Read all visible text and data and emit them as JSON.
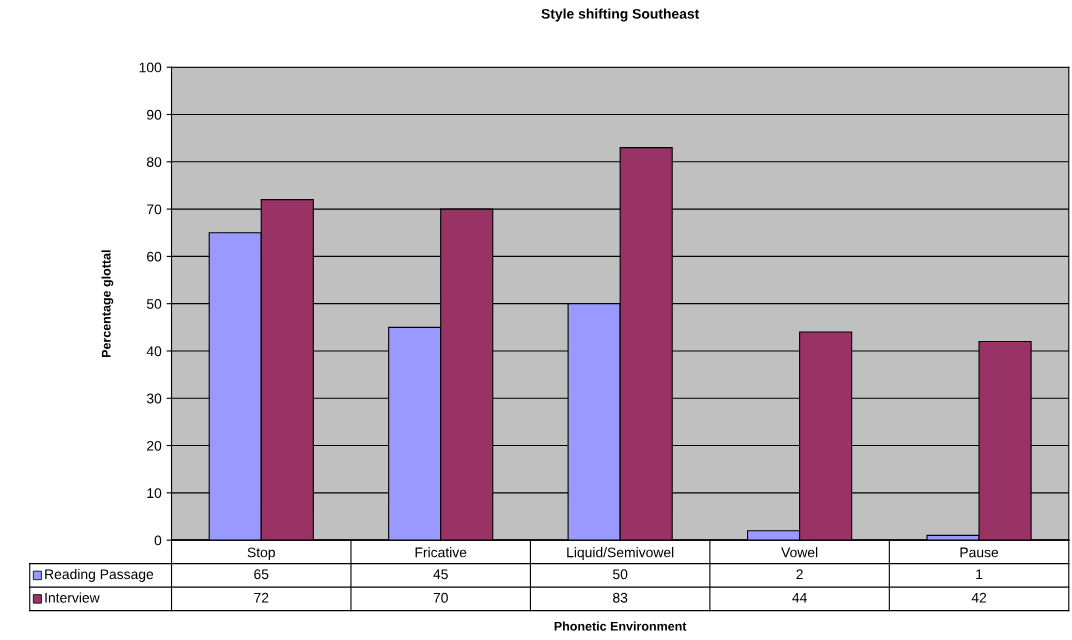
{
  "chart_data": {
    "type": "bar",
    "title": "Style shifting Southeast",
    "xlabel": "Phonetic Environment",
    "ylabel": "Percentage glottal",
    "categories": [
      "Stop",
      "Fricative",
      "Liquid/Semivowel",
      "Vowel",
      "Pause"
    ],
    "series": [
      {
        "name": "Reading Passage",
        "color": "#9999ff",
        "values": [
          65,
          45,
          50,
          2,
          1
        ]
      },
      {
        "name": "Interview",
        "color": "#993366",
        "values": [
          72,
          70,
          83,
          44,
          42
        ]
      }
    ],
    "ylim": [
      0,
      100
    ],
    "yticks": [
      0,
      10,
      20,
      30,
      40,
      50,
      60,
      70,
      80,
      90,
      100
    ],
    "grid": "y",
    "data_labels": true,
    "legend": "bottom left"
  }
}
